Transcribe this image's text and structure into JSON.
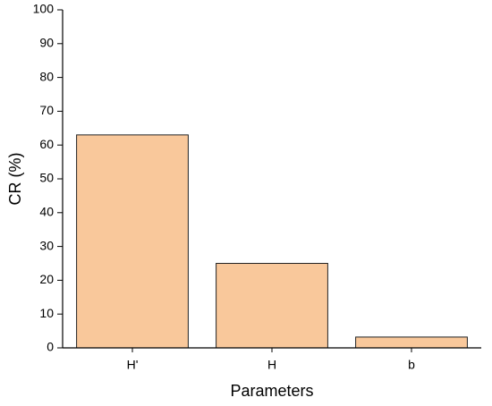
{
  "chart_data": {
    "type": "bar",
    "x_label": "Parameters",
    "y_label": "CR (%)",
    "categories": [
      "H'",
      "H",
      "b"
    ],
    "values": [
      63,
      25,
      3.2
    ],
    "color": "#f9c89b",
    "ylim": [
      0,
      100
    ],
    "yticks": [
      0,
      10,
      20,
      30,
      40,
      50,
      60,
      70,
      80,
      90,
      100
    ]
  }
}
